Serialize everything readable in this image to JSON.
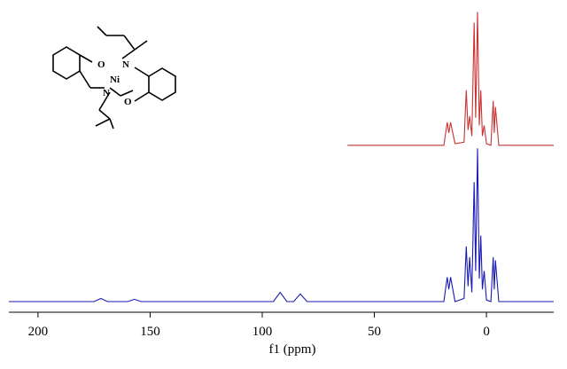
{
  "chart_data": {
    "type": "line",
    "x_label": "f1 (ppm)",
    "x": [
      213,
      175,
      172,
      169,
      160,
      157,
      154,
      95,
      92,
      89,
      86,
      83,
      80,
      62,
      19,
      17.5,
      16.8,
      16,
      14,
      10,
      9,
      8.2,
      7.5,
      6.5,
      5.5,
      4.8,
      4,
      3.2,
      2.5,
      1.8,
      1,
      0,
      -2,
      -3,
      -3.5,
      -4,
      -5.5,
      -30
    ],
    "series": [
      {
        "color": "#1a1ab4",
        "values": [
          0,
          0,
          2,
          0,
          0,
          1.5,
          0,
          0,
          6,
          0,
          0,
          5,
          0,
          0,
          0,
          16,
          8,
          16,
          0,
          2,
          36,
          10,
          29,
          6,
          78,
          20,
          100,
          15,
          43,
          8,
          20,
          1,
          0,
          29,
          8,
          27,
          0,
          0
        ]
      },
      {
        "color": "#c83232",
        "values": [
          null,
          null,
          null,
          null,
          null,
          null,
          null,
          null,
          null,
          null,
          null,
          null,
          null,
          102,
          102,
          117,
          110,
          117,
          103,
          104,
          138,
          112,
          121,
          108,
          182,
          120,
          189,
          115,
          138,
          108,
          115,
          103,
          102,
          131,
          110,
          127,
          102,
          102
        ]
      }
    ],
    "xlim": [
      213,
      -30
    ],
    "ylim": [
      0,
      191
    ],
    "xticks": [
      200,
      150,
      100,
      50,
      0
    ]
  },
  "structure": {
    "atoms": [
      "O",
      "N",
      "Ni",
      "N",
      "O"
    ]
  }
}
